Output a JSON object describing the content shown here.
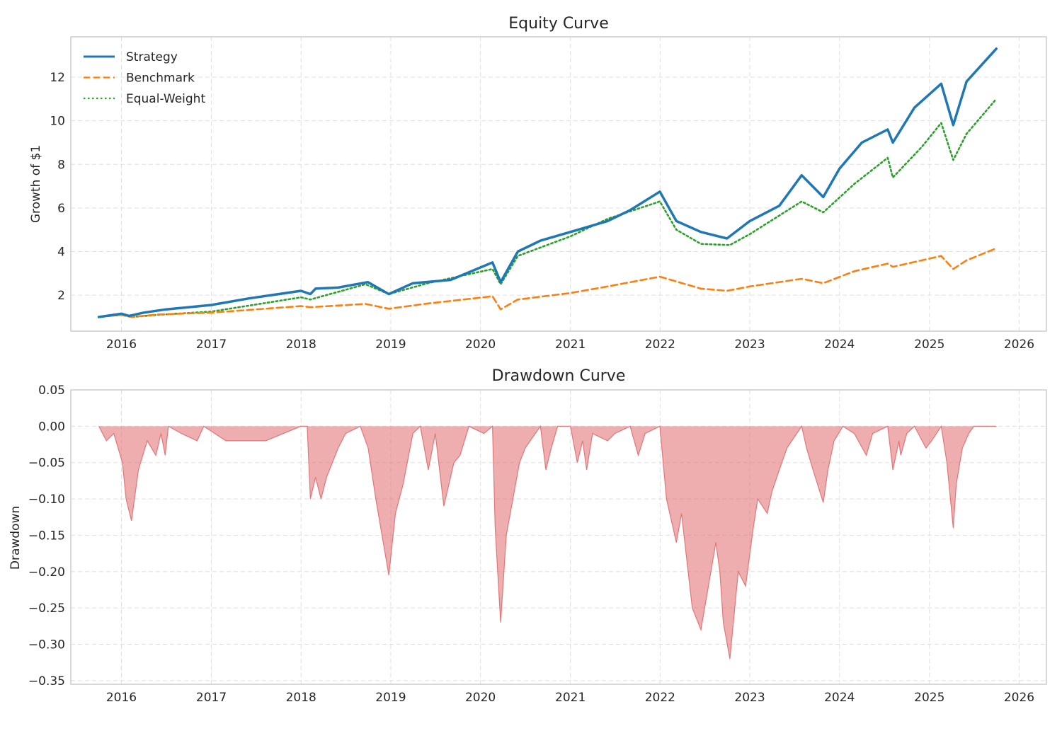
{
  "chart_data": [
    {
      "type": "line",
      "title": "Equity Curve",
      "xlabel": "",
      "ylabel": "Growth of $1",
      "xlim": [
        "2015-06-09",
        "2026-04-22"
      ],
      "ylim": [
        0.35,
        13.85
      ],
      "x_ticks": [
        "2016",
        "2017",
        "2018",
        "2019",
        "2020",
        "2021",
        "2022",
        "2023",
        "2024",
        "2025",
        "2026"
      ],
      "y_ticks": [
        "2",
        "4",
        "6",
        "8",
        "10",
        "12"
      ],
      "grid": true,
      "legend_position": "top-left",
      "series": [
        {
          "name": "Strategy",
          "color": "#1f77b4",
          "style": "solid",
          "x": [
            "2015-10-01",
            "2016-01-01",
            "2016-02-01",
            "2016-04-01",
            "2016-07-01",
            "2017-01-01",
            "2017-06-01",
            "2018-01-01",
            "2018-02-08",
            "2018-03-01",
            "2018-06-01",
            "2018-09-30",
            "2018-12-24",
            "2019-04-01",
            "2019-09-01",
            "2020-02-19",
            "2020-03-23",
            "2020-06-01",
            "2020-09-01",
            "2021-01-01",
            "2021-06-01",
            "2021-09-01",
            "2021-12-31",
            "2022-03-08",
            "2022-06-16",
            "2022-09-30",
            "2023-01-01",
            "2023-05-01",
            "2023-07-31",
            "2023-10-27",
            "2024-01-01",
            "2024-04-01",
            "2024-07-15",
            "2024-08-05",
            "2024-11-01",
            "2025-02-18",
            "2025-04-08",
            "2025-06-01",
            "2025-09-30"
          ],
          "y": [
            1.0,
            1.15,
            1.05,
            1.2,
            1.35,
            1.55,
            1.85,
            2.2,
            2.05,
            2.3,
            2.35,
            2.6,
            2.05,
            2.55,
            2.7,
            3.5,
            2.6,
            4.0,
            4.5,
            4.9,
            5.4,
            5.9,
            6.75,
            5.4,
            4.9,
            4.6,
            5.4,
            6.1,
            7.5,
            6.5,
            7.8,
            9.0,
            9.6,
            9.0,
            10.6,
            11.7,
            9.8,
            11.8,
            13.3
          ]
        },
        {
          "name": "Benchmark",
          "color": "#ff7f0e",
          "style": "dashed",
          "x": [
            "2015-10-01",
            "2016-01-01",
            "2016-02-11",
            "2016-06-01",
            "2017-01-01",
            "2018-01-01",
            "2018-02-08",
            "2018-09-20",
            "2018-12-24",
            "2019-06-01",
            "2020-02-19",
            "2020-03-23",
            "2020-06-01",
            "2021-01-01",
            "2021-06-01",
            "2021-12-31",
            "2022-06-16",
            "2022-09-30",
            "2023-01-01",
            "2023-07-31",
            "2023-10-27",
            "2024-03-01",
            "2024-07-15",
            "2024-08-05",
            "2025-02-18",
            "2025-04-08",
            "2025-06-01",
            "2025-09-30"
          ],
          "y": [
            1.0,
            1.1,
            1.0,
            1.12,
            1.2,
            1.5,
            1.45,
            1.6,
            1.38,
            1.62,
            1.95,
            1.35,
            1.8,
            2.1,
            2.4,
            2.85,
            2.3,
            2.2,
            2.4,
            2.75,
            2.55,
            3.1,
            3.45,
            3.3,
            3.8,
            3.2,
            3.6,
            4.15
          ]
        },
        {
          "name": "Equal-Weight",
          "color": "#2ca02c",
          "style": "dotted",
          "x": [
            "2015-10-01",
            "2016-01-01",
            "2016-02-11",
            "2016-06-01",
            "2017-01-01",
            "2018-01-01",
            "2018-02-08",
            "2018-09-20",
            "2018-12-24",
            "2019-06-01",
            "2020-02-19",
            "2020-03-23",
            "2020-06-01",
            "2021-01-01",
            "2021-06-01",
            "2021-12-31",
            "2022-03-08",
            "2022-06-16",
            "2022-10-12",
            "2023-01-01",
            "2023-07-31",
            "2023-10-27",
            "2024-03-01",
            "2024-07-15",
            "2024-08-05",
            "2024-12-01",
            "2025-02-18",
            "2025-04-08",
            "2025-06-01",
            "2025-09-30"
          ],
          "y": [
            1.0,
            1.1,
            1.0,
            1.1,
            1.25,
            1.9,
            1.8,
            2.5,
            2.05,
            2.55,
            3.2,
            2.5,
            3.8,
            4.7,
            5.5,
            6.3,
            5.0,
            4.35,
            4.3,
            4.8,
            6.3,
            5.8,
            7.1,
            8.3,
            7.4,
            8.8,
            9.9,
            8.2,
            9.4,
            11.0
          ]
        }
      ]
    },
    {
      "type": "area",
      "title": "Drawdown Curve",
      "xlabel": "",
      "ylabel": "Drawdown",
      "xlim": [
        "2015-06-09",
        "2026-04-22"
      ],
      "ylim": [
        -0.355,
        0.05
      ],
      "x_ticks": [
        "2016",
        "2017",
        "2018",
        "2019",
        "2020",
        "2021",
        "2022",
        "2023",
        "2024",
        "2025",
        "2026"
      ],
      "y_ticks": [
        "0.05",
        "0.00",
        "−0.05",
        "−0.10",
        "−0.15",
        "−0.20",
        "−0.25",
        "−0.30",
        "−0.35"
      ],
      "grid": true,
      "color": "#e06c6e",
      "series": [
        {
          "name": "",
          "x": [
            "2015-10-01",
            "2015-11-01",
            "2015-12-01",
            "2016-01-05",
            "2016-01-20",
            "2016-02-11",
            "2016-03-10",
            "2016-04-15",
            "2016-05-20",
            "2016-06-10",
            "2016-06-27",
            "2016-07-10",
            "2016-09-01",
            "2016-11-04",
            "2016-12-01",
            "2017-03-01",
            "2017-08-10",
            "2017-12-31",
            "2018-01-26",
            "2018-02-08",
            "2018-03-01",
            "2018-03-23",
            "2018-04-15",
            "2018-06-01",
            "2018-07-01",
            "2018-08-30",
            "2018-10-01",
            "2018-11-01",
            "2018-12-24",
            "2019-01-20",
            "2019-02-20",
            "2019-04-01",
            "2019-05-01",
            "2019-06-03",
            "2019-07-01",
            "2019-08-05",
            "2019-09-15",
            "2019-10-10",
            "2019-11-15",
            "2020-01-15",
            "2020-02-19",
            "2020-03-01",
            "2020-03-23",
            "2020-04-15",
            "2020-06-08",
            "2020-07-01",
            "2020-09-01",
            "2020-09-23",
            "2020-10-15",
            "2020-11-10",
            "2021-01-01",
            "2021-01-29",
            "2021-02-20",
            "2021-03-08",
            "2021-04-01",
            "2021-06-01",
            "2021-07-01",
            "2021-09-01",
            "2021-10-04",
            "2021-11-01",
            "2021-12-31",
            "2022-01-27",
            "2022-03-08",
            "2022-03-29",
            "2022-05-12",
            "2022-06-16",
            "2022-08-16",
            "2022-09-01",
            "2022-09-15",
            "2022-10-12",
            "2022-11-15",
            "2022-12-15",
            "2023-01-15",
            "2023-02-02",
            "2023-03-13",
            "2023-04-01",
            "2023-05-01",
            "2023-06-01",
            "2023-07-31",
            "2023-08-20",
            "2023-09-15",
            "2023-10-27",
            "2023-11-15",
            "2023-12-10",
            "2024-01-15",
            "2024-03-01",
            "2024-04-19",
            "2024-05-15",
            "2024-07-15",
            "2024-08-05",
            "2024-08-30",
            "2024-09-06",
            "2024-10-01",
            "2024-11-01",
            "2024-12-18",
            "2025-01-10",
            "2025-02-18",
            "2025-03-13",
            "2025-04-08",
            "2025-04-20",
            "2025-05-15",
            "2025-06-10",
            "2025-07-01",
            "2025-08-01",
            "2025-09-01",
            "2025-09-30"
          ],
          "y": [
            0.0,
            -0.02,
            -0.01,
            -0.05,
            -0.1,
            -0.13,
            -0.06,
            -0.02,
            -0.04,
            -0.01,
            -0.04,
            0.0,
            -0.01,
            -0.02,
            0.0,
            -0.02,
            -0.02,
            0.0,
            0.0,
            -0.1,
            -0.07,
            -0.1,
            -0.07,
            -0.03,
            -0.01,
            0.0,
            -0.03,
            -0.1,
            -0.205,
            -0.12,
            -0.08,
            -0.01,
            0.0,
            -0.06,
            -0.01,
            -0.11,
            -0.05,
            -0.04,
            0.0,
            -0.01,
            0.0,
            -0.14,
            -0.27,
            -0.15,
            -0.05,
            -0.03,
            0.0,
            -0.06,
            -0.03,
            0.0,
            0.0,
            -0.05,
            -0.02,
            -0.06,
            -0.01,
            -0.02,
            -0.01,
            0.0,
            -0.04,
            -0.01,
            0.0,
            -0.1,
            -0.16,
            -0.12,
            -0.25,
            -0.28,
            -0.16,
            -0.2,
            -0.27,
            -0.32,
            -0.2,
            -0.22,
            -0.14,
            -0.1,
            -0.12,
            -0.09,
            -0.06,
            -0.03,
            0.0,
            -0.03,
            -0.06,
            -0.105,
            -0.06,
            -0.02,
            0.0,
            -0.01,
            -0.04,
            -0.01,
            0.0,
            -0.06,
            -0.02,
            -0.04,
            -0.01,
            0.0,
            -0.03,
            -0.02,
            0.0,
            -0.05,
            -0.14,
            -0.08,
            -0.03,
            -0.01,
            0.0,
            0.0,
            0.0,
            0.0
          ]
        }
      ]
    }
  ]
}
